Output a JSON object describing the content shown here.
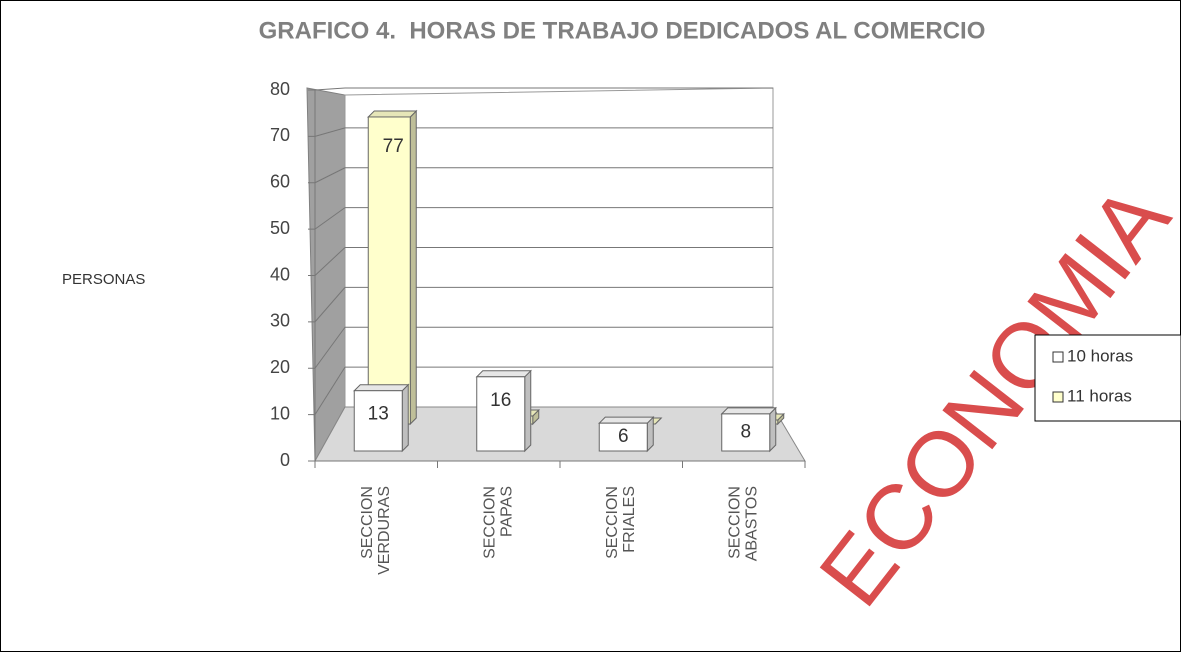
{
  "chart_data": {
    "type": "bar3d",
    "title": "GRAFICO 4.  HORAS DE TRABAJO DEDICADOS AL COMERCIO",
    "ylabel": "PERSONAS",
    "categories": [
      "SECCION VERDURAS",
      "SECCION PAPAS",
      "SECCION FRIALES",
      "SECCION ABASTOS"
    ],
    "series": [
      {
        "name": "10 horas",
        "color": "#ffffff",
        "values": [
          13,
          16,
          6,
          8
        ]
      },
      {
        "name": "11 horas",
        "color": "#ffffcc",
        "values": [
          77,
          2,
          0,
          1
        ]
      }
    ],
    "ylim": [
      0,
      80
    ],
    "yticks": [
      0,
      10,
      20,
      30,
      40,
      50,
      60,
      70,
      80
    ],
    "grid": true,
    "data_labels": true,
    "legend": "right"
  },
  "watermark": "ECONOMIA"
}
